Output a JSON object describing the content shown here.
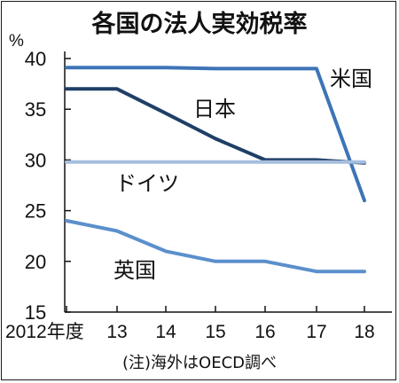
{
  "chart_data": {
    "type": "line",
    "title": "各国の法人実効税率",
    "ylabel": "%",
    "ylim": [
      15,
      40
    ],
    "yticks": [
      15,
      20,
      25,
      30,
      35,
      40
    ],
    "categories": [
      "2012年度",
      "13",
      "14",
      "15",
      "16",
      "17",
      "18"
    ],
    "series": [
      {
        "name": "米国",
        "color": "#3d74b8",
        "values": [
          39.1,
          39.1,
          39.1,
          39.0,
          39.0,
          39.0,
          26.0
        ]
      },
      {
        "name": "日本",
        "color": "#1f3f66",
        "values": [
          37.0,
          37.0,
          34.6,
          32.1,
          30.0,
          30.0,
          29.7
        ]
      },
      {
        "name": "ドイツ",
        "color": "#a6bedd",
        "values": [
          29.8,
          29.8,
          29.8,
          29.8,
          29.8,
          29.8,
          29.8
        ]
      },
      {
        "name": "英国",
        "color": "#5b8fcc",
        "values": [
          24.0,
          23.0,
          21.0,
          20.0,
          20.0,
          19.0,
          19.0
        ]
      }
    ],
    "note": "(注)海外はOECD調べ",
    "grid": false,
    "legend": "inline-labels"
  }
}
